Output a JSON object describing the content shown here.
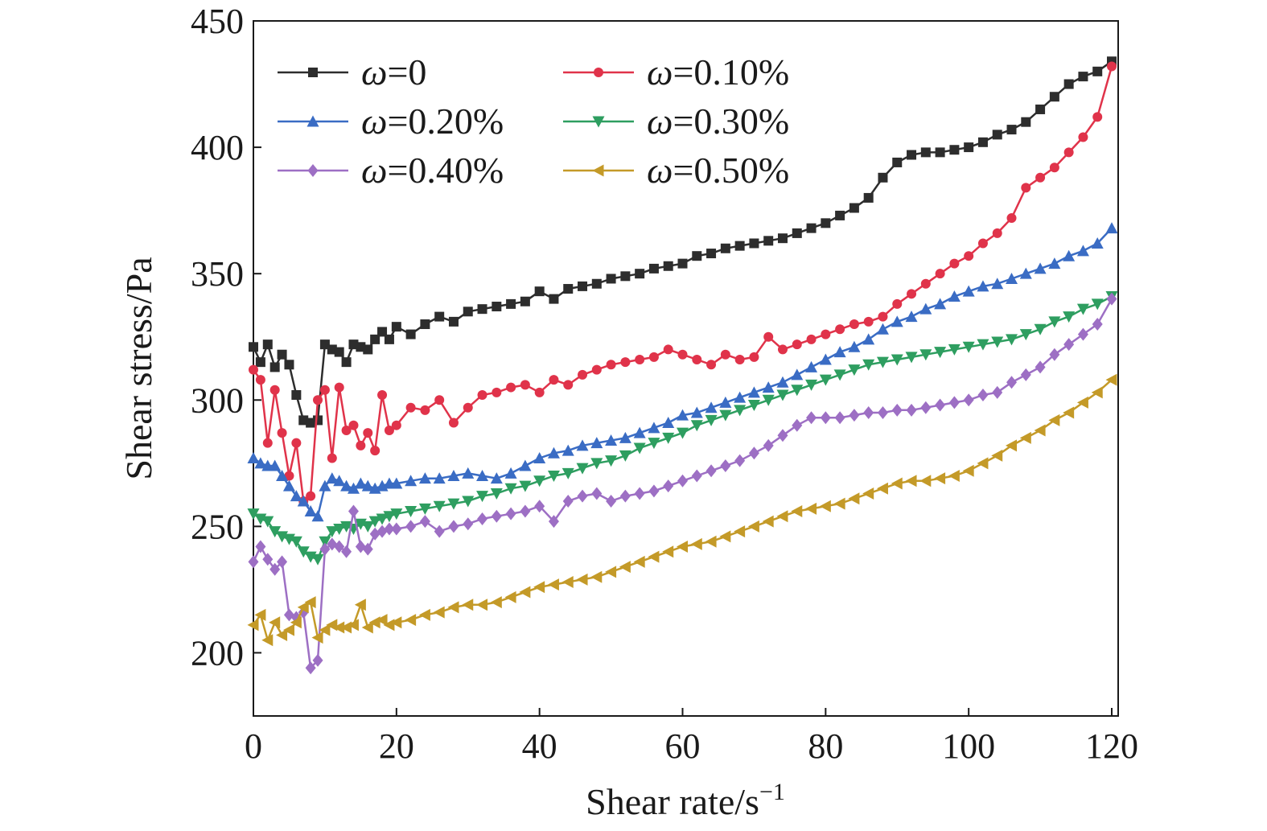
{
  "chart_data": {
    "type": "line",
    "title": "",
    "xlabel": "Shear rate/s",
    "xlabel_superscript": "−1",
    "ylabel": "Shear stress/Pa",
    "xlim": [
      0,
      120
    ],
    "ylim": [
      175,
      450
    ],
    "xticks": [
      0,
      20,
      40,
      60,
      80,
      100,
      120
    ],
    "yticks": [
      200,
      250,
      300,
      350,
      400,
      450
    ],
    "xtick_labels": [
      "0",
      "20",
      "40",
      "60",
      "80",
      "100",
      "120"
    ],
    "ytick_labels": [
      "200",
      "250",
      "300",
      "350",
      "400",
      "450"
    ],
    "grid": false,
    "legend_position": "top",
    "series": [
      {
        "name": "ω=0",
        "symbol": "ω",
        "label_value": "=0",
        "color": "#2d2d2d",
        "marker": "square",
        "x": [
          0,
          1,
          2,
          3,
          4,
          5,
          6,
          7,
          8,
          9,
          10,
          11,
          12,
          13,
          14,
          15,
          16,
          17,
          18,
          19,
          20,
          22,
          24,
          26,
          28,
          30,
          32,
          34,
          36,
          38,
          40,
          42,
          44,
          46,
          48,
          50,
          52,
          54,
          56,
          58,
          60,
          62,
          64,
          66,
          68,
          70,
          72,
          74,
          76,
          78,
          80,
          82,
          84,
          86,
          88,
          90,
          92,
          94,
          96,
          98,
          100,
          102,
          104,
          106,
          108,
          110,
          112,
          114,
          116,
          118,
          120
        ],
        "y": [
          321,
          315,
          322,
          313,
          318,
          314,
          302,
          292,
          291,
          292,
          322,
          320,
          319,
          315,
          322,
          321,
          320,
          324,
          327,
          324,
          329,
          326,
          330,
          333,
          331,
          335,
          336,
          337,
          338,
          339,
          343,
          340,
          344,
          345,
          346,
          348,
          349,
          350,
          352,
          353,
          354,
          357,
          358,
          360,
          361,
          362,
          363,
          364,
          366,
          368,
          370,
          373,
          376,
          380,
          388,
          394,
          397,
          398,
          398,
          399,
          400,
          402,
          405,
          407,
          410,
          415,
          420,
          425,
          428,
          430,
          434
        ]
      },
      {
        "name": "ω=0.10%",
        "symbol": "ω",
        "label_value": "=0.10%",
        "color": "#e0334a",
        "marker": "circle",
        "x": [
          0,
          1,
          2,
          3,
          4,
          5,
          6,
          7,
          8,
          9,
          10,
          11,
          12,
          13,
          14,
          15,
          16,
          17,
          18,
          19,
          20,
          22,
          24,
          26,
          28,
          30,
          32,
          34,
          36,
          38,
          40,
          42,
          44,
          46,
          48,
          50,
          52,
          54,
          56,
          58,
          60,
          62,
          64,
          66,
          68,
          70,
          72,
          74,
          76,
          78,
          80,
          82,
          84,
          86,
          88,
          90,
          92,
          94,
          96,
          98,
          100,
          102,
          104,
          106,
          108,
          110,
          112,
          114,
          116,
          118,
          120
        ],
        "y": [
          312,
          308,
          283,
          304,
          287,
          270,
          283,
          260,
          262,
          300,
          304,
          277,
          305,
          288,
          290,
          282,
          287,
          280,
          302,
          288,
          290,
          297,
          296,
          300,
          291,
          297,
          302,
          303,
          305,
          306,
          303,
          308,
          306,
          310,
          312,
          314,
          315,
          316,
          317,
          320,
          318,
          316,
          314,
          318,
          316,
          317,
          325,
          320,
          322,
          324,
          326,
          328,
          330,
          331,
          333,
          338,
          342,
          346,
          350,
          354,
          357,
          362,
          366,
          372,
          384,
          388,
          392,
          398,
          404,
          412,
          432
        ]
      },
      {
        "name": "ω=0.20%",
        "symbol": "ω",
        "label_value": "=0.20%",
        "color": "#3a6cc4",
        "marker": "triangle-up",
        "x": [
          0,
          1,
          2,
          3,
          4,
          5,
          6,
          7,
          8,
          9,
          10,
          11,
          12,
          13,
          14,
          15,
          16,
          17,
          18,
          19,
          20,
          22,
          24,
          26,
          28,
          30,
          32,
          34,
          36,
          38,
          40,
          42,
          44,
          46,
          48,
          50,
          52,
          54,
          56,
          58,
          60,
          62,
          64,
          66,
          68,
          70,
          72,
          74,
          76,
          78,
          80,
          82,
          84,
          86,
          88,
          90,
          92,
          94,
          96,
          98,
          100,
          102,
          104,
          106,
          108,
          110,
          112,
          114,
          116,
          118,
          120
        ],
        "y": [
          277,
          275,
          274,
          274,
          270,
          266,
          262,
          260,
          256,
          254,
          266,
          269,
          268,
          266,
          265,
          267,
          266,
          265,
          266,
          267,
          267,
          268,
          269,
          269,
          270,
          271,
          270,
          269,
          271,
          274,
          277,
          279,
          280,
          282,
          283,
          284,
          285,
          287,
          289,
          291,
          294,
          295,
          297,
          299,
          301,
          303,
          305,
          307,
          310,
          313,
          316,
          319,
          321,
          324,
          328,
          331,
          333,
          336,
          338,
          341,
          343,
          345,
          346,
          348,
          350,
          352,
          354,
          357,
          359,
          362,
          368
        ]
      },
      {
        "name": "ω=0.30%",
        "symbol": "ω",
        "label_value": "=0.30%",
        "color": "#2e9e60",
        "marker": "triangle-down",
        "x": [
          0,
          1,
          2,
          3,
          4,
          5,
          6,
          7,
          8,
          9,
          10,
          11,
          12,
          13,
          14,
          15,
          16,
          17,
          18,
          19,
          20,
          22,
          24,
          26,
          28,
          30,
          32,
          34,
          36,
          38,
          40,
          42,
          44,
          46,
          48,
          50,
          52,
          54,
          56,
          58,
          60,
          62,
          64,
          66,
          68,
          70,
          72,
          74,
          76,
          78,
          80,
          82,
          84,
          86,
          88,
          90,
          92,
          94,
          96,
          98,
          100,
          102,
          104,
          106,
          108,
          110,
          112,
          114,
          116,
          118,
          120
        ],
        "y": [
          255,
          253,
          252,
          248,
          246,
          245,
          244,
          240,
          238,
          237,
          244,
          248,
          249,
          250,
          249,
          251,
          250,
          252,
          253,
          254,
          255,
          256,
          257,
          258,
          259,
          260,
          262,
          263,
          265,
          266,
          268,
          270,
          271,
          273,
          275,
          276,
          278,
          281,
          283,
          285,
          287,
          290,
          292,
          294,
          296,
          298,
          300,
          302,
          304,
          306,
          308,
          310,
          312,
          314,
          315,
          316,
          317,
          318,
          319,
          320,
          321,
          322,
          323,
          324,
          326,
          328,
          331,
          333,
          336,
          338,
          341
        ]
      },
      {
        "name": "ω=0.40%",
        "symbol": "ω",
        "label_value": "=0.40%",
        "color": "#9d6fc4",
        "marker": "diamond",
        "x": [
          0,
          1,
          2,
          3,
          4,
          5,
          6,
          7,
          8,
          9,
          10,
          11,
          12,
          13,
          14,
          15,
          16,
          17,
          18,
          19,
          20,
          22,
          24,
          26,
          28,
          30,
          32,
          34,
          36,
          38,
          40,
          42,
          44,
          46,
          48,
          50,
          52,
          54,
          56,
          58,
          60,
          62,
          64,
          66,
          68,
          70,
          72,
          74,
          76,
          78,
          80,
          82,
          84,
          86,
          88,
          90,
          92,
          94,
          96,
          98,
          100,
          102,
          104,
          106,
          108,
          110,
          112,
          114,
          116,
          118,
          120
        ],
        "y": [
          236,
          242,
          237,
          233,
          236,
          215,
          214,
          216,
          194,
          197,
          241,
          243,
          242,
          240,
          256,
          242,
          241,
          247,
          248,
          249,
          249,
          250,
          252,
          248,
          250,
          251,
          253,
          254,
          255,
          256,
          258,
          252,
          260,
          262,
          263,
          260,
          262,
          263,
          264,
          266,
          268,
          270,
          272,
          274,
          276,
          279,
          282,
          286,
          290,
          293,
          293,
          293,
          294,
          295,
          295,
          296,
          296,
          297,
          298,
          299,
          300,
          302,
          303,
          307,
          310,
          313,
          318,
          322,
          326,
          330,
          340
        ]
      },
      {
        "name": "ω=0.50%",
        "symbol": "ω",
        "label_value": "=0.50%",
        "color": "#c49a28",
        "marker": "triangle-left",
        "x": [
          0,
          1,
          2,
          3,
          4,
          5,
          6,
          7,
          8,
          9,
          10,
          11,
          12,
          13,
          14,
          15,
          16,
          17,
          18,
          19,
          20,
          22,
          24,
          26,
          28,
          30,
          32,
          34,
          36,
          38,
          40,
          42,
          44,
          46,
          48,
          50,
          52,
          54,
          56,
          58,
          60,
          62,
          64,
          66,
          68,
          70,
          72,
          74,
          76,
          78,
          80,
          82,
          84,
          86,
          88,
          90,
          92,
          94,
          96,
          98,
          100,
          102,
          104,
          106,
          108,
          110,
          112,
          114,
          116,
          118,
          120
        ],
        "y": [
          211,
          215,
          205,
          212,
          207,
          209,
          212,
          218,
          220,
          206,
          209,
          211,
          210,
          210,
          211,
          219,
          210,
          212,
          213,
          211,
          212,
          213,
          215,
          216,
          218,
          219,
          219,
          220,
          222,
          224,
          226,
          227,
          228,
          229,
          230,
          232,
          234,
          236,
          238,
          240,
          242,
          243,
          244,
          246,
          248,
          250,
          252,
          254,
          256,
          257,
          258,
          259,
          261,
          263,
          265,
          267,
          268,
          268,
          269,
          270,
          272,
          275,
          278,
          282,
          285,
          288,
          292,
          295,
          299,
          303,
          308
        ]
      }
    ]
  }
}
